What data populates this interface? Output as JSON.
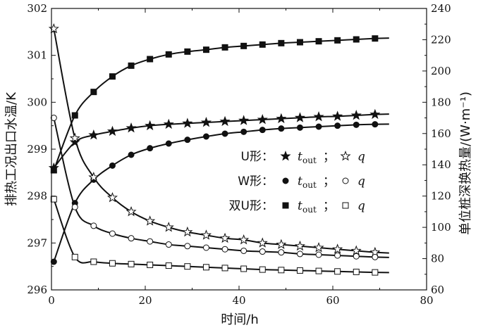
{
  "chart_data": {
    "type": "line",
    "xlabel": "时间/h",
    "ylabel_left": "排热工况出口水温/K",
    "ylabel_right": "单位桩深换热量/(W·m⁻¹)",
    "xlim": [
      0,
      80
    ],
    "ylim_left": [
      296,
      302
    ],
    "ylim_right": [
      60,
      240
    ],
    "x_ticks": [
      "0",
      "20",
      "40",
      "60",
      "80"
    ],
    "y_left_ticks": [
      "296",
      "297",
      "298",
      "299",
      "300",
      "301",
      "302"
    ],
    "y_right_ticks": [
      "60",
      "80",
      "100",
      "120",
      "140",
      "160",
      "180",
      "200",
      "220",
      "240"
    ],
    "legend": [
      {
        "label": "U形：",
        "tout": "t",
        "tout_sub": "out",
        "sep": "；",
        "q": "q",
        "marker_t": "star-filled",
        "marker_q": "star-open"
      },
      {
        "label": "W形：",
        "tout": "t",
        "tout_sub": "out",
        "sep": "；",
        "q": "q",
        "marker_t": "circle-filled",
        "marker_q": "circle-open"
      },
      {
        "label": "双U形：",
        "tout": "t",
        "tout_sub": "out",
        "sep": "；",
        "q": "q",
        "marker_t": "square-filled",
        "marker_q": "square-open"
      }
    ],
    "series": [
      {
        "name": "U形 tout",
        "axis": "left",
        "marker": "star-filled",
        "x": [
          0.5,
          5,
          9,
          13,
          17,
          21,
          25,
          29,
          33,
          37,
          41,
          45,
          49,
          53,
          57,
          61,
          65,
          69
        ],
        "y": [
          298.6,
          299.15,
          299.3,
          299.38,
          299.45,
          299.5,
          299.53,
          299.55,
          299.57,
          299.59,
          299.61,
          299.63,
          299.65,
          299.67,
          299.69,
          299.7,
          299.72,
          299.74
        ]
      },
      {
        "name": "W形 tout",
        "axis": "left",
        "marker": "circle-filled",
        "x": [
          0.5,
          5,
          9,
          13,
          17,
          21,
          25,
          29,
          33,
          37,
          41,
          45,
          49,
          53,
          57,
          61,
          65,
          69
        ],
        "y": [
          296.6,
          297.85,
          298.35,
          298.65,
          298.88,
          299.02,
          299.12,
          299.2,
          299.27,
          299.33,
          299.37,
          299.41,
          299.44,
          299.46,
          299.48,
          299.5,
          299.52,
          299.53
        ]
      },
      {
        "name": "双U形 tout",
        "axis": "left",
        "marker": "square-filled",
        "x": [
          0.5,
          5,
          9,
          13,
          17,
          21,
          25,
          29,
          33,
          37,
          41,
          45,
          49,
          53,
          57,
          61,
          65,
          69
        ],
        "y": [
          298.55,
          299.72,
          300.22,
          300.55,
          300.78,
          300.92,
          301.02,
          301.08,
          301.12,
          301.17,
          301.2,
          301.23,
          301.26,
          301.28,
          301.3,
          301.32,
          301.34,
          301.36
        ]
      },
      {
        "name": "U形 q",
        "axis": "right",
        "marker": "star-open",
        "x": [
          0.5,
          5,
          9,
          13,
          17,
          21,
          25,
          29,
          33,
          37,
          41,
          45,
          49,
          53,
          57,
          61,
          65,
          69
        ],
        "y": [
          227,
          157,
          132,
          119,
          110,
          104,
          100,
          97,
          95,
          93,
          92,
          90,
          89,
          88,
          87,
          86,
          85,
          84
        ]
      },
      {
        "name": "W形 q",
        "axis": "right",
        "marker": "circle-open",
        "x": [
          0.5,
          5,
          9,
          13,
          17,
          21,
          25,
          29,
          33,
          37,
          41,
          45,
          49,
          53,
          57,
          61,
          65,
          69
        ],
        "y": [
          170,
          113,
          101,
          96,
          93,
          91,
          89,
          88,
          87,
          86,
          85,
          84.5,
          84,
          83,
          82.5,
          82,
          81.5,
          81
        ]
      },
      {
        "name": "双U形 q",
        "axis": "right",
        "marker": "square-open",
        "x": [
          0.5,
          5,
          9,
          13,
          17,
          21,
          25,
          29,
          33,
          37,
          41,
          45,
          49,
          53,
          57,
          61,
          65,
          69
        ],
        "y": [
          118,
          81,
          78,
          77,
          76.5,
          76,
          75.5,
          75,
          74.5,
          74,
          73.5,
          73,
          72.7,
          72.4,
          72.1,
          71.8,
          71.5,
          71.2
        ]
      }
    ]
  }
}
